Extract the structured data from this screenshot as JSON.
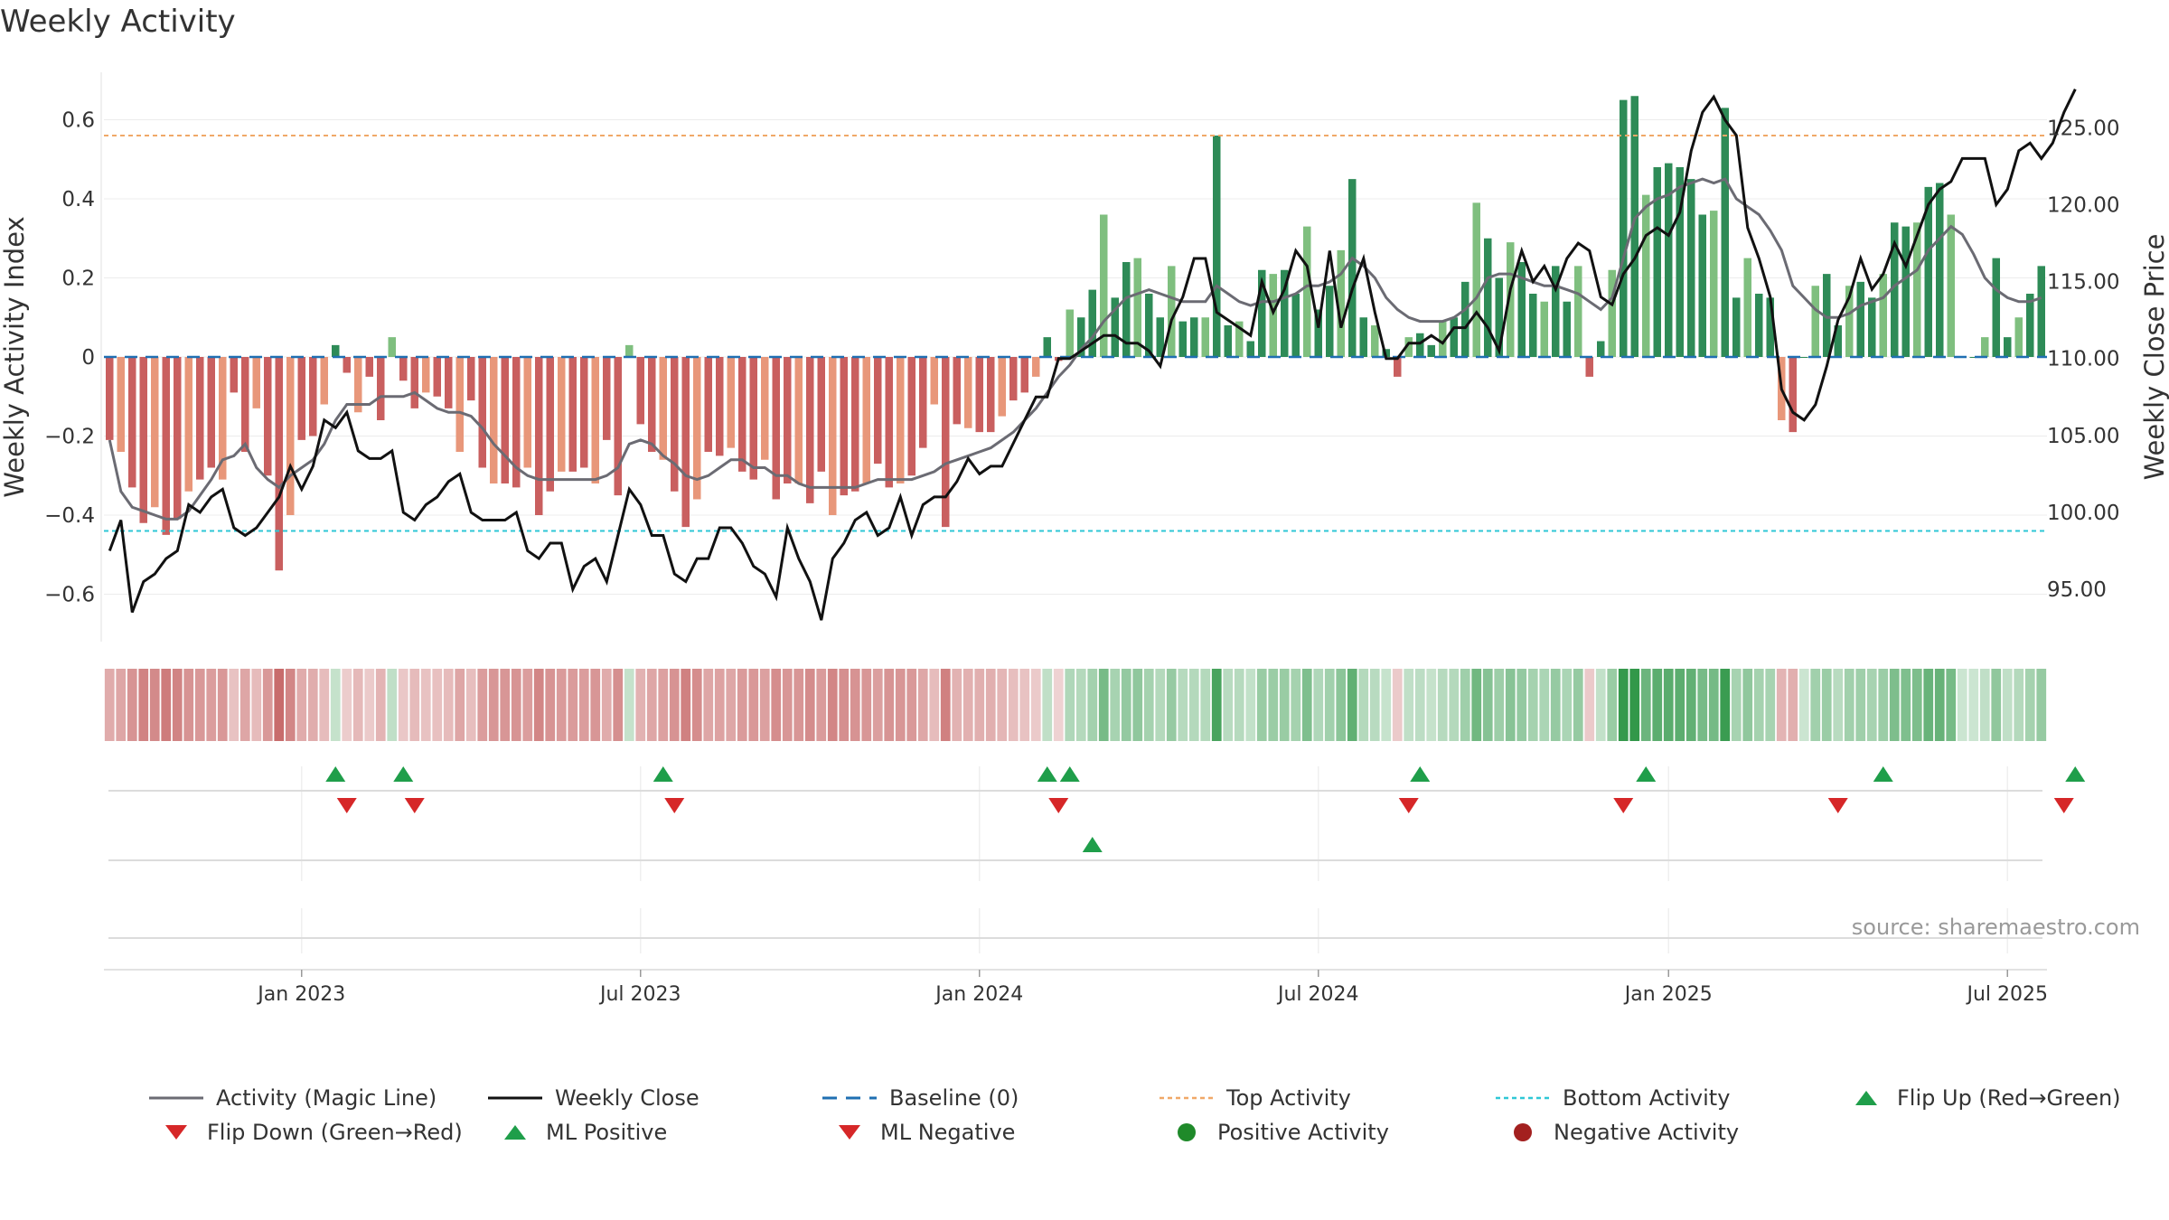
{
  "title": "Weekly Activity",
  "source": "source: sharemaestro.com",
  "chart_data": {
    "type": "bar",
    "title": "Weekly Activity",
    "ylabel": "Weekly Activity Index",
    "y2label": "Weekly Close Price",
    "ylim": [
      -0.72,
      0.72
    ],
    "y2lim": [
      91.6,
      128.6
    ],
    "yticks": [
      0.6,
      0.4,
      0.2,
      0,
      -0.2,
      -0.4,
      -0.6
    ],
    "ytick_labels": [
      "0.6",
      "0.4",
      "0.2",
      "0",
      "−0.2",
      "−0.4",
      "−0.6"
    ],
    "y2ticks": [
      125,
      120,
      115,
      110,
      105,
      100,
      95
    ],
    "y2tick_labels": [
      "125.00",
      "120.00",
      "115.00",
      "110.00",
      "105.00",
      "100.00",
      "95.00"
    ],
    "xtick_labels": [
      "Jan 2023",
      "Jul 2023",
      "Jan 2024",
      "Jul 2024",
      "Jan 2025",
      "Jul 2025"
    ],
    "xtick_weeks": [
      17,
      47,
      77,
      107,
      138,
      168
    ],
    "top_activity": 0.56,
    "bottom_activity": -0.44,
    "activity": [
      -0.21,
      -0.24,
      -0.33,
      -0.42,
      -0.38,
      -0.45,
      -0.41,
      -0.34,
      -0.31,
      -0.28,
      -0.31,
      -0.09,
      -0.24,
      -0.13,
      -0.3,
      -0.54,
      -0.4,
      -0.21,
      -0.2,
      -0.12,
      0.03,
      -0.04,
      -0.14,
      -0.05,
      -0.16,
      0.05,
      -0.06,
      -0.13,
      -0.09,
      -0.1,
      -0.13,
      -0.24,
      -0.11,
      -0.28,
      -0.32,
      -0.32,
      -0.33,
      -0.28,
      -0.4,
      -0.34,
      -0.29,
      -0.29,
      -0.28,
      -0.32,
      -0.21,
      -0.35,
      0.03,
      -0.17,
      -0.24,
      -0.26,
      -0.34,
      -0.43,
      -0.36,
      -0.24,
      -0.25,
      -0.23,
      -0.29,
      -0.31,
      -0.26,
      -0.36,
      -0.32,
      -0.32,
      -0.37,
      -0.29,
      -0.4,
      -0.35,
      -0.34,
      -0.32,
      -0.27,
      -0.33,
      -0.32,
      -0.3,
      -0.23,
      -0.12,
      -0.43,
      -0.17,
      -0.18,
      -0.19,
      -0.19,
      -0.15,
      -0.11,
      -0.09,
      -0.05,
      0.05,
      -0.01,
      0.12,
      0.1,
      0.17,
      0.36,
      0.15,
      0.24,
      0.25,
      0.16,
      0.1,
      0.23,
      0.09,
      0.1,
      0.1,
      0.56,
      0.08,
      0.09,
      0.04,
      0.22,
      0.21,
      0.22,
      0.16,
      0.33,
      0.12,
      0.18,
      0.27,
      0.45,
      0.1,
      0.08,
      0.02,
      -0.05,
      0.05,
      0.06,
      0.03,
      0.09,
      0.1,
      0.19,
      0.39,
      0.3,
      0.2,
      0.29,
      0.24,
      0.16,
      0.14,
      0.23,
      0.14,
      0.23,
      -0.05,
      0.04,
      0.22,
      0.65,
      0.66,
      0.41,
      0.48,
      0.49,
      0.48,
      0.45,
      0.36,
      0.37,
      0.63,
      0.15,
      0.25,
      0.16,
      0.15,
      -0.16,
      -0.19,
      0.0,
      0.18,
      0.21,
      0.08,
      0.18,
      0.19,
      0.15,
      0.21,
      0.34,
      0.33,
      0.34,
      0.43,
      0.44,
      0.36,
      0.0,
      0.0,
      0.05,
      0.25,
      0.05,
      0.1,
      0.16,
      0.23
    ],
    "magic_line": [
      -0.21,
      -0.34,
      -0.38,
      -0.39,
      -0.4,
      -0.41,
      -0.41,
      -0.39,
      -0.35,
      -0.31,
      -0.26,
      -0.25,
      -0.22,
      -0.28,
      -0.31,
      -0.33,
      -0.3,
      -0.28,
      -0.26,
      -0.22,
      -0.16,
      -0.12,
      -0.12,
      -0.12,
      -0.1,
      -0.1,
      -0.1,
      -0.09,
      -0.11,
      -0.13,
      -0.14,
      -0.14,
      -0.15,
      -0.18,
      -0.22,
      -0.25,
      -0.28,
      -0.3,
      -0.31,
      -0.31,
      -0.31,
      -0.31,
      -0.31,
      -0.31,
      -0.3,
      -0.28,
      -0.22,
      -0.21,
      -0.22,
      -0.25,
      -0.27,
      -0.3,
      -0.31,
      -0.3,
      -0.28,
      -0.26,
      -0.26,
      -0.28,
      -0.28,
      -0.3,
      -0.3,
      -0.32,
      -0.33,
      -0.33,
      -0.33,
      -0.33,
      -0.33,
      -0.32,
      -0.31,
      -0.31,
      -0.31,
      -0.31,
      -0.3,
      -0.29,
      -0.27,
      -0.26,
      -0.25,
      -0.24,
      -0.23,
      -0.21,
      -0.19,
      -0.16,
      -0.13,
      -0.09,
      -0.05,
      -0.02,
      0.02,
      0.05,
      0.09,
      0.12,
      0.15,
      0.16,
      0.17,
      0.16,
      0.15,
      0.14,
      0.14,
      0.14,
      0.18,
      0.16,
      0.14,
      0.13,
      0.14,
      0.14,
      0.15,
      0.16,
      0.18,
      0.18,
      0.19,
      0.21,
      0.25,
      0.23,
      0.2,
      0.15,
      0.12,
      0.1,
      0.09,
      0.09,
      0.09,
      0.1,
      0.12,
      0.15,
      0.2,
      0.21,
      0.21,
      0.2,
      0.19,
      0.18,
      0.18,
      0.17,
      0.16,
      0.14,
      0.12,
      0.15,
      0.25,
      0.35,
      0.38,
      0.4,
      0.41,
      0.43,
      0.44,
      0.45,
      0.44,
      0.45,
      0.4,
      0.38,
      0.36,
      0.32,
      0.27,
      0.18,
      0.15,
      0.12,
      0.1,
      0.1,
      0.11,
      0.13,
      0.14,
      0.15,
      0.18,
      0.2,
      0.22,
      0.27,
      0.3,
      0.33,
      0.31,
      0.26,
      0.2,
      0.17,
      0.15,
      0.14,
      0.14,
      0.15
    ],
    "weekly_close": [
      97.5,
      99.5,
      93.5,
      95.5,
      96,
      97,
      97.5,
      100.5,
      100,
      101,
      101.5,
      99,
      98.5,
      99,
      100,
      101,
      103,
      101.5,
      103,
      106,
      105.5,
      106.5,
      104,
      103.5,
      103.5,
      104,
      100,
      99.5,
      100.5,
      101,
      102,
      102.5,
      100,
      99.5,
      99.5,
      99.5,
      100,
      97.5,
      97,
      98,
      98,
      95,
      96.5,
      97,
      95.5,
      98.5,
      101.5,
      100.5,
      98.5,
      98.5,
      96,
      95.5,
      97,
      97,
      99,
      99,
      98,
      96.5,
      96,
      94.5,
      99,
      97,
      95.5,
      93,
      97,
      98,
      99.5,
      100,
      98.5,
      99,
      101,
      98.5,
      100.5,
      101,
      101,
      102,
      103.5,
      102.5,
      103,
      103,
      104.5,
      106,
      107.5,
      107.5,
      110,
      110,
      110.5,
      111,
      111.5,
      111.5,
      111,
      111,
      110.5,
      109.5,
      112.5,
      114,
      116.5,
      116.5,
      113,
      112.5,
      112,
      111.5,
      115,
      113,
      114.5,
      117,
      116,
      112,
      117,
      112,
      114.5,
      116.5,
      113,
      110,
      110,
      111,
      111,
      111.5,
      111,
      112,
      112,
      113,
      112,
      110.5,
      114.5,
      117,
      115,
      116,
      114.5,
      116.5,
      117.5,
      117,
      114,
      113.5,
      115.5,
      116.5,
      118,
      118.5,
      118,
      119.5,
      123.5,
      126,
      127,
      125.5,
      124.5,
      118.5,
      116.5,
      114,
      108,
      106.5,
      106,
      107,
      109.5,
      112.5,
      114,
      116.5,
      114.5,
      115.5,
      117.5,
      116,
      118,
      120,
      121,
      121.5,
      123,
      123,
      123,
      120,
      121,
      123.5,
      124,
      123,
      124,
      126,
      127.5
    ],
    "flip_up_weeks": [
      20,
      26,
      49,
      83,
      85,
      116,
      136,
      157,
      174
    ],
    "flip_down_weeks": [
      21,
      27,
      50,
      84,
      115,
      134,
      153,
      173
    ],
    "ml_positive_weeks": [
      87
    ],
    "ml_negative_weeks": [],
    "legend": {
      "magic": "Activity (Magic Line)",
      "close": "Weekly Close",
      "baseline": "Baseline (0)",
      "top": "Top Activity",
      "bottom": "Bottom Activity",
      "flipup": "Flip Up (Red→Green)",
      "flipdown": "Flip Down (Green→Red)",
      "mlpos": "ML Positive",
      "mlneg": "ML Negative",
      "posact": "Positive Activity",
      "negact": "Negative Activity"
    }
  },
  "colors": {
    "pos_dark": "#2e8b57",
    "pos_light": "#7fbf7f",
    "neg_dark": "#c95f5f",
    "neg_light": "#e8977a",
    "magic_line": "#6b6b73",
    "close_line": "#111111",
    "baseline": "#1f6fb2",
    "top_line": "#f0a868",
    "bottom_line": "#2fc7d6",
    "flip_up": "#1f9e4a",
    "flip_down": "#d62728",
    "pos_marker": "#1f8a2a",
    "neg_marker": "#a3201f"
  }
}
